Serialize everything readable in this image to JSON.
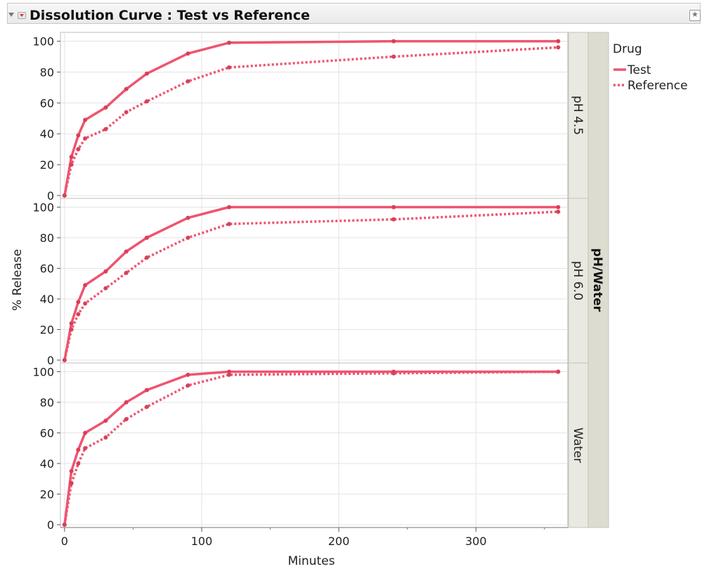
{
  "window": {
    "title": "Dissolution Curve : Test vs Reference"
  },
  "icons": {
    "disclosure": "triangle-down-icon",
    "menu": "red-triangle-menu-icon",
    "corner": "pin-star-icon"
  },
  "colors": {
    "series": "#ee5470",
    "marker": "#d94057",
    "grid": "#e3e3e3",
    "strip": "#e9e9e2",
    "groupStrip": "#dcdcd0"
  },
  "chart_data": {
    "type": "line",
    "title": "Dissolution Curve : Test vs Reference",
    "xlabel": "Minutes",
    "ylabel": "% Release",
    "xlim": [
      -3,
      367
    ],
    "ylim": [
      0,
      103
    ],
    "xticks": [
      0,
      100,
      200,
      300
    ],
    "yticks": [
      0,
      20,
      40,
      60,
      80,
      100
    ],
    "group_label": "pH/Water",
    "legend": {
      "title": "Drug",
      "position": "right",
      "entries": [
        "Test",
        "Reference"
      ]
    },
    "x": [
      0,
      5,
      10,
      15,
      30,
      45,
      60,
      90,
      120,
      240,
      360
    ],
    "panels": [
      {
        "label": "pH 4.5",
        "series": [
          {
            "name": "Test",
            "values": [
              0,
              25,
              39,
              49,
              57,
              69,
              79,
              92,
              99,
              100,
              100
            ]
          },
          {
            "name": "Reference",
            "values": [
              0,
              20,
              30,
              37,
              43,
              54,
              61,
              74,
              83,
              90,
              96
            ]
          }
        ]
      },
      {
        "label": "pH 6.0",
        "series": [
          {
            "name": "Test",
            "values": [
              0,
              24,
              38,
              49,
              58,
              71,
              80,
              93,
              100,
              100,
              100
            ]
          },
          {
            "name": "Reference",
            "values": [
              0,
              20,
              30,
              37,
              47,
              57,
              67,
              80,
              89,
              92,
              97
            ]
          }
        ]
      },
      {
        "label": "Water",
        "series": [
          {
            "name": "Test",
            "values": [
              0,
              35,
              49,
              60,
              68,
              80,
              88,
              98,
              100,
              100,
              100
            ]
          },
          {
            "name": "Reference",
            "values": [
              0,
              27,
              40,
              50,
              57,
              69,
              77,
              91,
              98,
              99,
              100
            ]
          }
        ]
      }
    ]
  }
}
